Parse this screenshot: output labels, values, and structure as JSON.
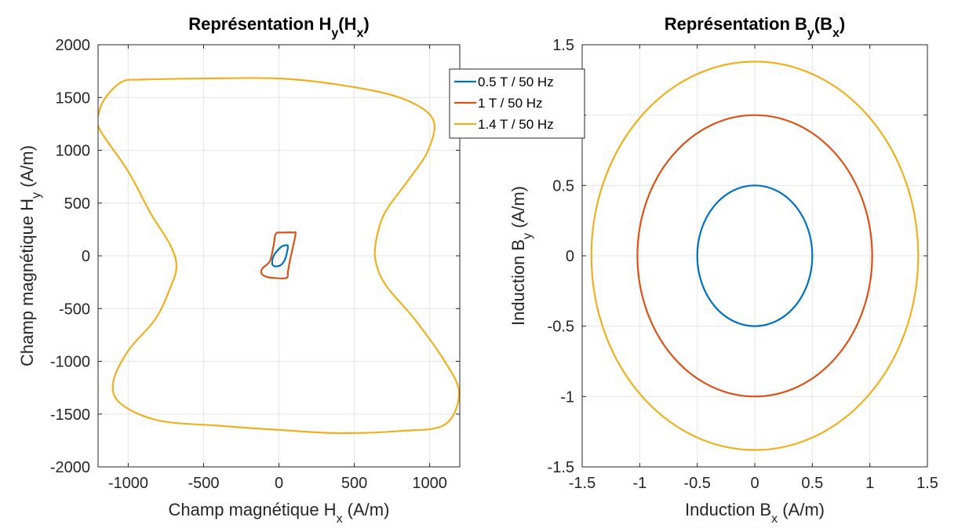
{
  "chart_data": [
    {
      "type": "line",
      "title": {
        "main": "Représentation H",
        "s1": "y",
        "mid": "(H",
        "s2": "x",
        "end": ")"
      },
      "xlabel": {
        "main": "Champ magnétique H",
        "sub": "x",
        "unit": " (A/m)"
      },
      "ylabel": {
        "main": "Champ magnétique H",
        "sub": "y",
        "unit": " (A/m)"
      },
      "xlim": [
        -1200,
        1200
      ],
      "ylim": [
        -2000,
        2000
      ],
      "xticks": [
        -1000,
        -500,
        0,
        500,
        1000
      ],
      "xtick_labels": [
        "-1000",
        "-500",
        "0",
        "500",
        "1000"
      ],
      "yticks": [
        -2000,
        -1500,
        -1000,
        -500,
        0,
        500,
        1000,
        1500,
        2000
      ],
      "ytick_labels": [
        "-2000",
        "-1500",
        "-1000",
        "-500",
        "0",
        "500",
        "1000",
        "1500",
        "2000"
      ],
      "grid": true,
      "series": [
        {
          "name": "0.5 T / 50 Hz",
          "color": "#0072BD",
          "closed": true,
          "x": [
            60,
            45,
            20,
            -10,
            -35,
            -45,
            -40,
            -20,
            10,
            35,
            48,
            60
          ],
          "y": [
            90,
            100,
            90,
            50,
            0,
            -50,
            -90,
            -100,
            -90,
            -50,
            0,
            90
          ]
        },
        {
          "name": "1 T / 50 Hz",
          "color": "#D95319",
          "closed": true,
          "x": [
            110,
            95,
            30,
            -20,
            -35,
            -60,
            -110,
            -115,
            -80,
            -30,
            50,
            60,
            75,
            110
          ],
          "y": [
            200,
            220,
            220,
            210,
            100,
            -50,
            -120,
            -170,
            -200,
            -210,
            -210,
            -150,
            -30,
            200
          ]
        },
        {
          "name": "1.4 T / 50 Hz",
          "color": "#EDB120",
          "closed": true,
          "x": [
            -1040,
            -900,
            -500,
            0,
            400,
            800,
            1020,
            990,
            850,
            700,
            640,
            650,
            720,
            900,
            1100,
            1195,
            1100,
            800,
            400,
            0,
            -400,
            -800,
            -1050,
            -1100,
            -1000,
            -820,
            -720,
            -680,
            -720,
            -850,
            -1000,
            -1190,
            -1195,
            -1150,
            -1040
          ],
          "y": [
            1650,
            1670,
            1680,
            1680,
            1620,
            1500,
            1300,
            1000,
            700,
            400,
            100,
            -100,
            -300,
            -600,
            -1000,
            -1300,
            -1600,
            -1660,
            -1680,
            -1650,
            -1610,
            -1560,
            -1400,
            -1200,
            -900,
            -600,
            -300,
            -100,
            100,
            400,
            800,
            1200,
            1350,
            1500,
            1650
          ]
        }
      ]
    },
    {
      "type": "line",
      "title": {
        "main": "Représentation B",
        "s1": "y",
        "mid": "(B",
        "s2": "x",
        "end": ")"
      },
      "xlabel": {
        "main": "Induction B",
        "sub": "x",
        "unit": " (A/m)"
      },
      "ylabel": {
        "main": "Induction B",
        "sub": "y",
        "unit": " (A/m)"
      },
      "xlim": [
        -1.5,
        1.5
      ],
      "ylim": [
        -1.5,
        1.5
      ],
      "xticks": [
        -1.5,
        -1,
        -0.5,
        0,
        0.5,
        1,
        1.5
      ],
      "xtick_labels": [
        "-1.5",
        "-1",
        "-0.5",
        "0",
        "0.5",
        "1",
        "1.5"
      ],
      "yticks": [
        -1.5,
        -1,
        -0.5,
        0,
        0.5,
        1,
        1.5
      ],
      "ytick_labels": [
        "-1.5",
        "-1",
        "-0.5",
        "0",
        "0.5",
        "1",
        "1.5"
      ],
      "grid": true,
      "series": [
        {
          "name": "0.5 T / 50 Hz",
          "color": "#0072BD",
          "shape": "ellipse",
          "rx": 0.5,
          "ry": 0.5
        },
        {
          "name": "1 T / 50 Hz",
          "color": "#D95319",
          "shape": "ellipse",
          "rx": 1.02,
          "ry": 1.0
        },
        {
          "name": "1.4 T / 50 Hz",
          "color": "#EDB120",
          "shape": "ellipse",
          "rx": 1.42,
          "ry": 1.38
        }
      ]
    }
  ],
  "legend": {
    "placement": "between-plots-top",
    "entries": [
      {
        "label": "0.5 T / 50 Hz",
        "color": "#0072BD"
      },
      {
        "label": "1 T / 50 Hz",
        "color": "#D95319"
      },
      {
        "label": "1.4 T / 50 Hz",
        "color": "#EDB120"
      }
    ]
  }
}
